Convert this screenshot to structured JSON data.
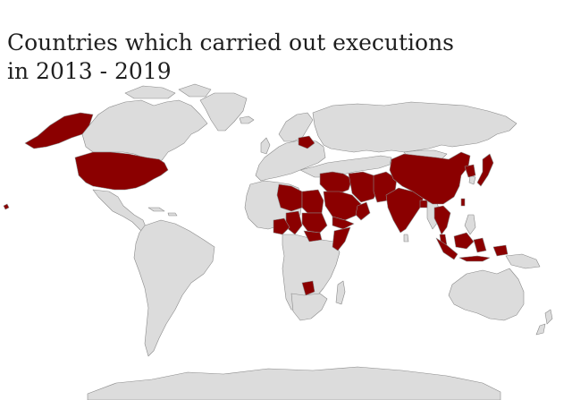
{
  "title": {
    "line1": "Countries which carried out executions",
    "line2": "in 2013 - 2019"
  },
  "colors": {
    "executed": "#8b0000",
    "other": "#dcdcdc",
    "outline": "#8a8a8a",
    "background": "#ffffff"
  },
  "map": {
    "projection": "world",
    "highlighted_countries": [
      "United States",
      "Belarus",
      "Egypt",
      "Libya",
      "Sudan",
      "South Sudan",
      "Nigeria",
      "Chad",
      "Somalia",
      "Botswana",
      "Saudi Arabia",
      "Yemen",
      "Iraq",
      "Iran",
      "Syria",
      "Jordan",
      "Kuwait",
      "Oman",
      "United Arab Emirates",
      "Afghanistan",
      "Pakistan",
      "India",
      "Bangladesh",
      "China",
      "Taiwan",
      "North Korea",
      "Japan",
      "Vietnam",
      "Thailand",
      "Malaysia",
      "Singapore",
      "Indonesia"
    ]
  }
}
